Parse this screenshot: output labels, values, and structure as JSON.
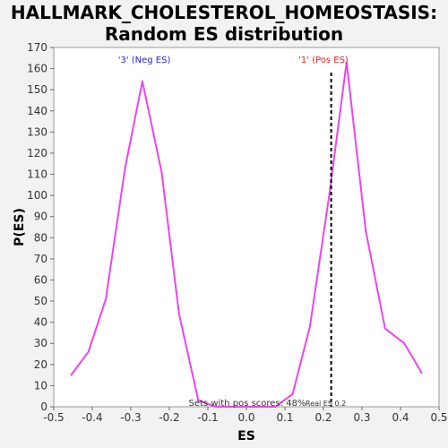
{
  "title_lines": [
    "HALLMARK_CHOLESTEROL_HOMEOSTASIS:",
    "Random ES distribution"
  ],
  "chart_data": {
    "type": "line",
    "xlabel": "ES",
    "ylabel": "P(ES)",
    "xlim": [
      -0.5,
      0.5
    ],
    "ylim": [
      0,
      170
    ],
    "x_ticks": [
      "-0.5",
      "-0.4",
      "-0.3",
      "-0.2",
      "-0.1",
      "0.0",
      "0.1",
      "0.2",
      "0.3",
      "0.4",
      "0.5"
    ],
    "y_ticks": [
      "0",
      "10",
      "20",
      "30",
      "40",
      "50",
      "60",
      "70",
      "80",
      "90",
      "100",
      "110",
      "120",
      "130",
      "140",
      "150",
      "160",
      "170"
    ],
    "series": [
      {
        "color": "#ee44ee",
        "x": [
          -0.455,
          -0.41,
          -0.365,
          -0.315,
          -0.27,
          -0.22,
          -0.175,
          -0.125,
          -0.08,
          -0.035,
          0.01,
          0.075,
          0.12,
          0.165,
          0.215,
          0.26,
          0.31,
          0.36,
          0.41,
          0.455
        ],
        "y": [
          15,
          26,
          51,
          113,
          154,
          111,
          44,
          3,
          0,
          0,
          0,
          0,
          6,
          38,
          100,
          163,
          83,
          37,
          30,
          16
        ]
      }
    ],
    "real_es": 0.22,
    "annotations": {
      "neg": "'3' (Neg ES)",
      "pos": "'1' (Pos ES)",
      "bottom": "Sets with pos scores: 48%",
      "real_es": "Real ES 0.2"
    },
    "colors": {
      "neg": "#2222ee",
      "pos": "#ee2222",
      "line": "#ee44ee",
      "real_es": "#000000"
    }
  }
}
